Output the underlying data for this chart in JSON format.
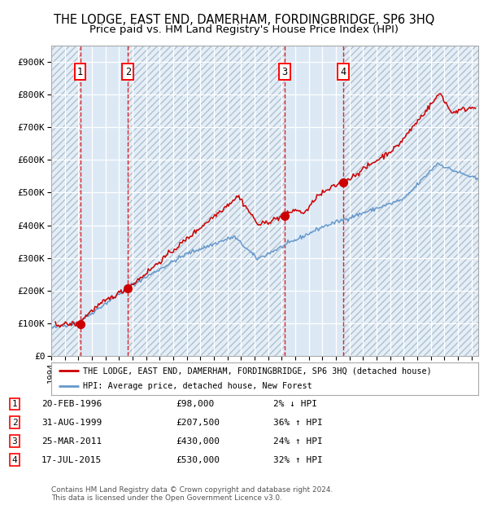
{
  "title": "THE LODGE, EAST END, DAMERHAM, FORDINGBRIDGE, SP6 3HQ",
  "subtitle": "Price paid vs. HM Land Registry's House Price Index (HPI)",
  "background_color": "#ffffff",
  "plot_bg_color": "#dce9f5",
  "hatch_color": "#b0bfcf",
  "grid_color": "#ffffff",
  "red_line_color": "#cc0000",
  "blue_line_color": "#6699cc",
  "dashed_line_color": "#dd0000",
  "sale_marker_color": "#cc0000",
  "ylim": [
    0,
    950000
  ],
  "yticks": [
    0,
    100000,
    200000,
    300000,
    400000,
    500000,
    600000,
    700000,
    800000,
    900000
  ],
  "ytick_labels": [
    "£0",
    "£100K",
    "£200K",
    "£300K",
    "£400K",
    "£500K",
    "£600K",
    "£700K",
    "£800K",
    "£900K"
  ],
  "xstart": 1994.0,
  "xend": 2025.5,
  "sales": [
    {
      "num": 1,
      "date_dec": 1996.13,
      "price": 98000,
      "label": "1",
      "date_str": "20-FEB-1996",
      "price_str": "£98,000",
      "rel": "2% ↓ HPI"
    },
    {
      "num": 2,
      "date_dec": 1999.66,
      "price": 207500,
      "label": "2",
      "date_str": "31-AUG-1999",
      "price_str": "£207,500",
      "rel": "36% ↑ HPI"
    },
    {
      "num": 3,
      "date_dec": 2011.23,
      "price": 430000,
      "label": "3",
      "date_str": "25-MAR-2011",
      "price_str": "£430,000",
      "rel": "24% ↑ HPI"
    },
    {
      "num": 4,
      "date_dec": 2015.54,
      "price": 530000,
      "label": "4",
      "date_str": "17-JUL-2015",
      "price_str": "£530,000",
      "rel": "32% ↑ HPI"
    }
  ],
  "legend_red_label": "THE LODGE, EAST END, DAMERHAM, FORDINGBRIDGE, SP6 3HQ (detached house)",
  "legend_blue_label": "HPI: Average price, detached house, New Forest",
  "footer_line1": "Contains HM Land Registry data © Crown copyright and database right 2024.",
  "footer_line2": "This data is licensed under the Open Government Licence v3.0.",
  "title_fontsize": 10.5,
  "subtitle_fontsize": 9.5
}
